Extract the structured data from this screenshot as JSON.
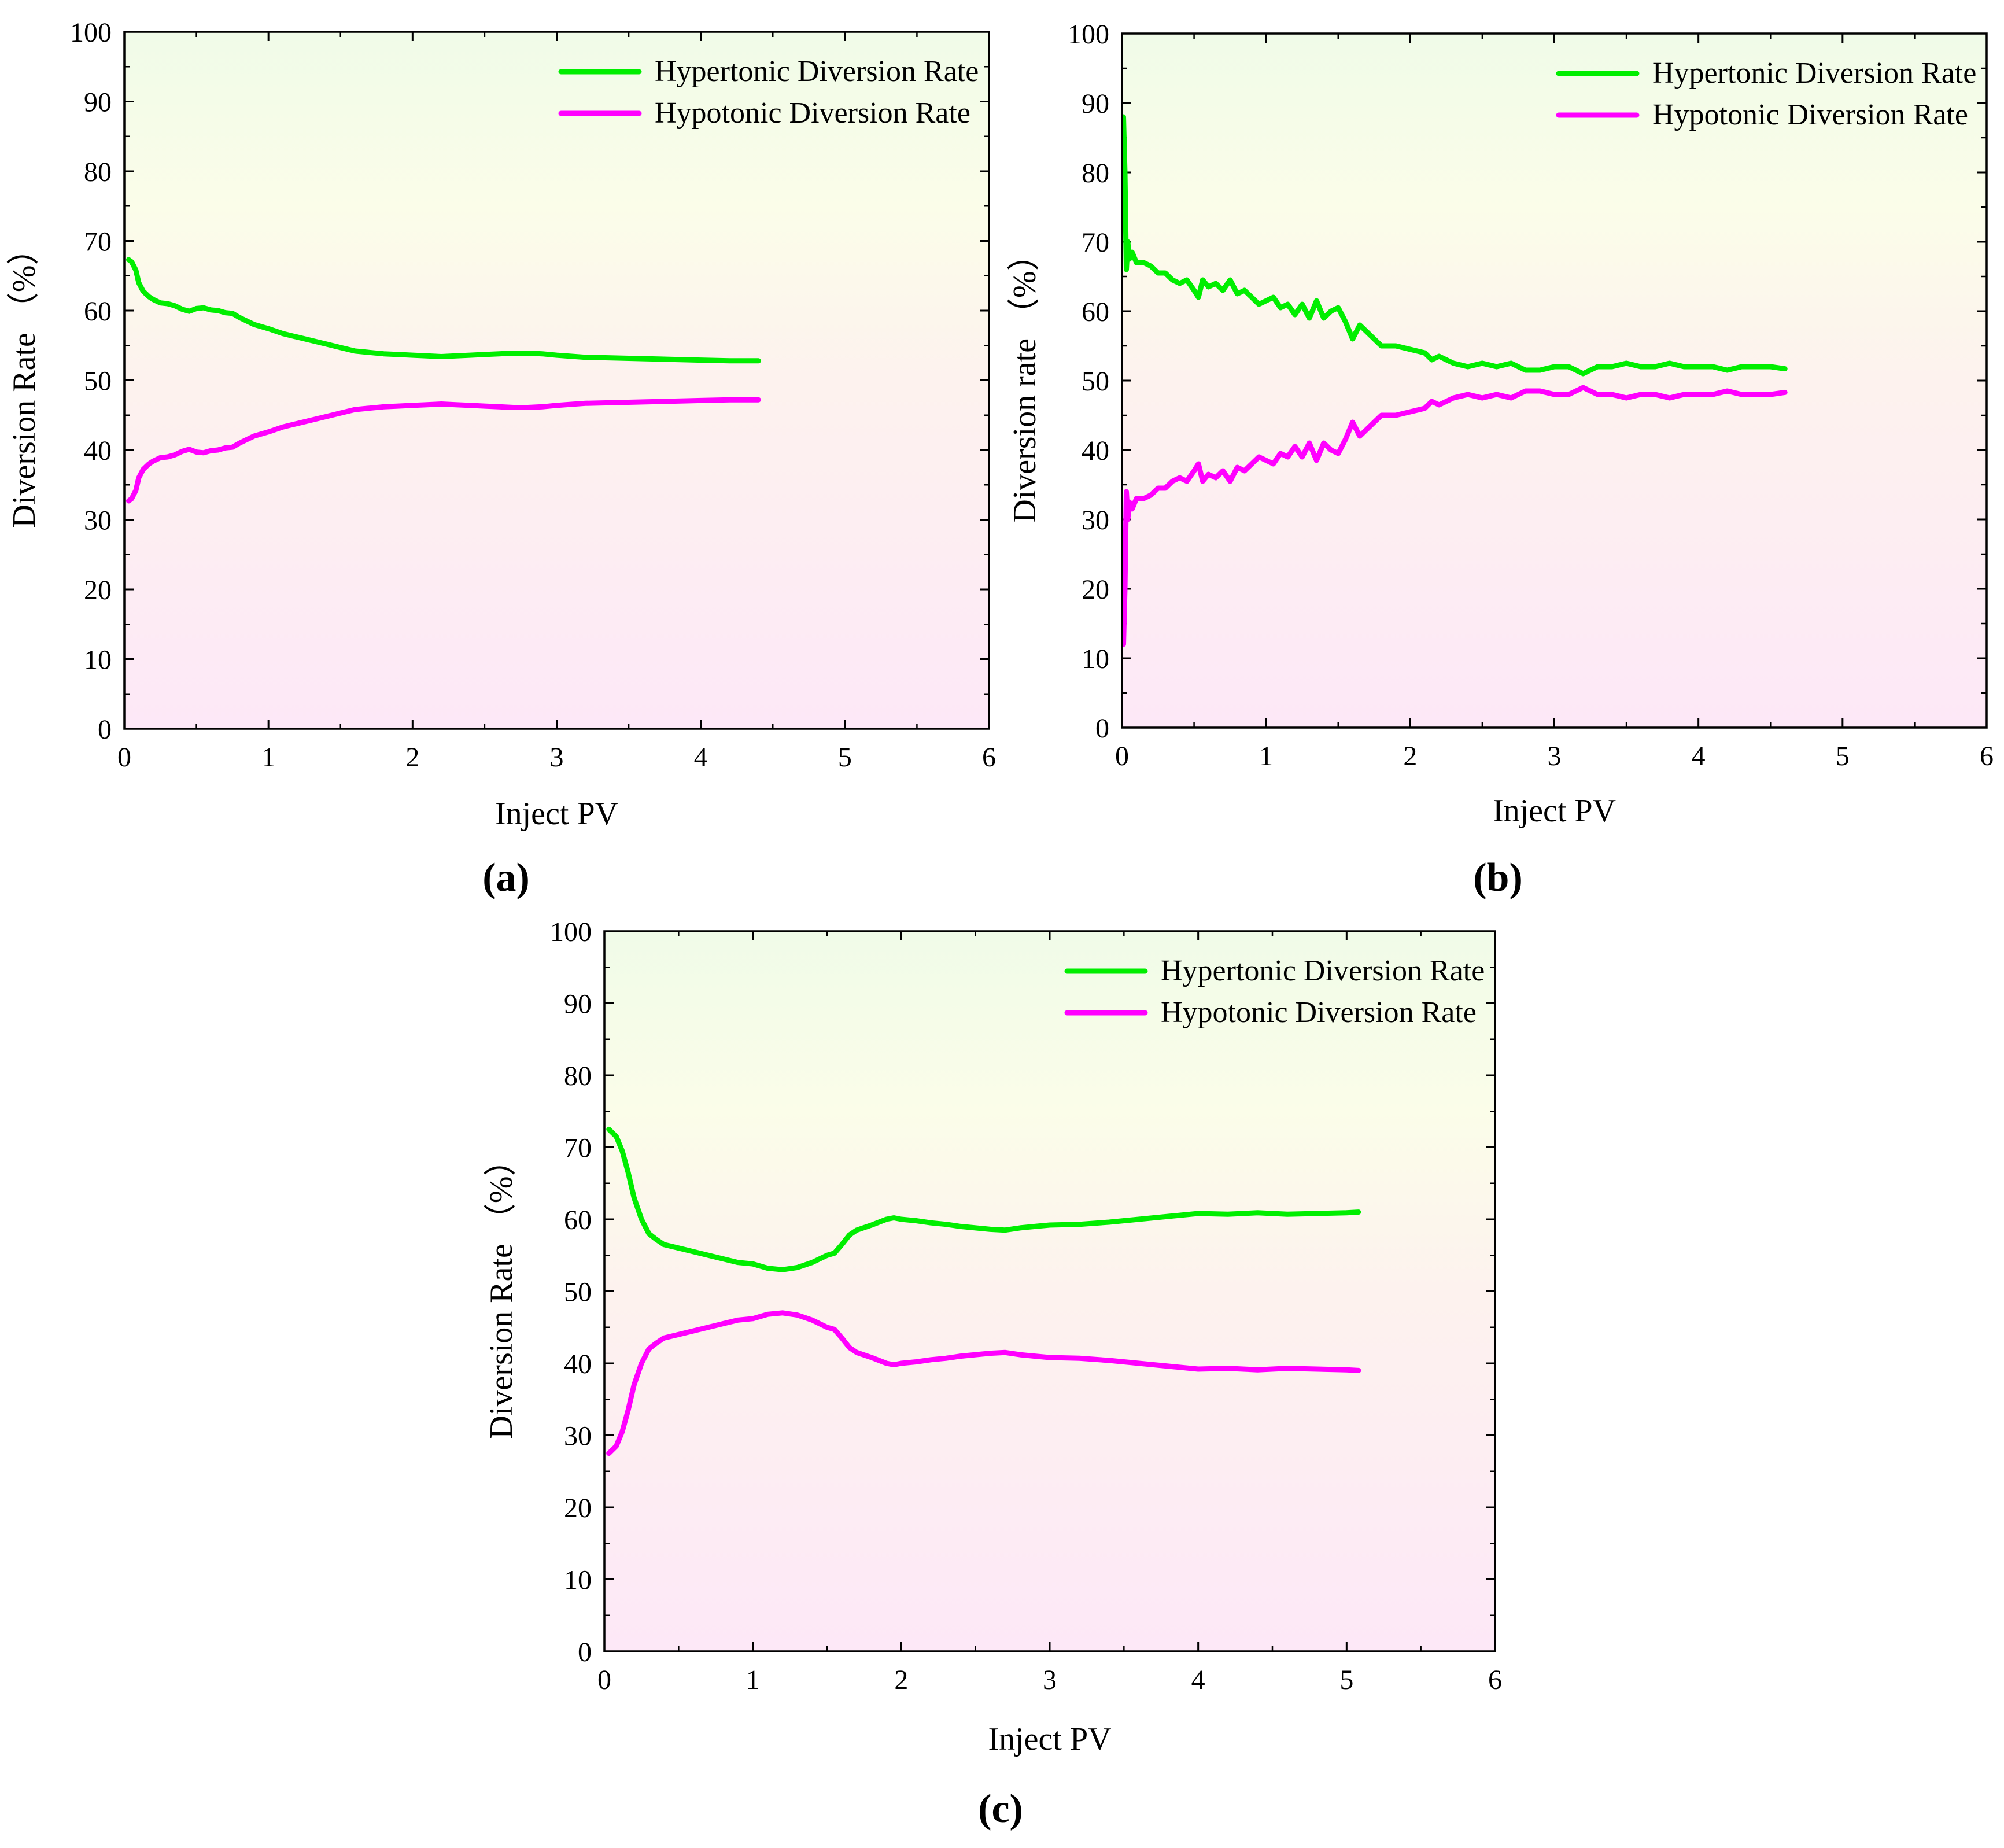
{
  "figure": {
    "panels": [
      "a",
      "b",
      "c"
    ]
  },
  "chart_data": [
    {
      "id": "a",
      "type": "line",
      "panel_label": "(a)",
      "xlabel": "Inject PV",
      "ylabel": "Diversion Rate （%）",
      "xlim": [
        0,
        6
      ],
      "ylim": [
        0,
        100
      ],
      "xticks": [
        0,
        1,
        2,
        3,
        4,
        5,
        6
      ],
      "yticks": [
        0,
        10,
        20,
        30,
        40,
        50,
        60,
        70,
        80,
        90,
        100
      ],
      "legend_position": "top-right",
      "series": [
        {
          "name": "Hypertonic Diversion Rate",
          "color": "#00ee00",
          "x": [
            0.03,
            0.05,
            0.08,
            0.1,
            0.13,
            0.17,
            0.2,
            0.25,
            0.3,
            0.35,
            0.4,
            0.45,
            0.5,
            0.55,
            0.6,
            0.65,
            0.7,
            0.75,
            0.8,
            0.9,
            1.0,
            1.1,
            1.2,
            1.3,
            1.4,
            1.5,
            1.6,
            1.7,
            1.8,
            1.9,
            2.0,
            2.1,
            2.2,
            2.3,
            2.4,
            2.5,
            2.6,
            2.7,
            2.8,
            2.9,
            3.0,
            3.2,
            3.4,
            3.6,
            3.8,
            4.0,
            4.2,
            4.4
          ],
          "values": [
            67.3,
            67.0,
            65.8,
            64.0,
            62.8,
            62.0,
            61.6,
            61.1,
            61.0,
            60.7,
            60.2,
            59.9,
            60.3,
            60.4,
            60.1,
            60.0,
            59.7,
            59.6,
            59.0,
            58.0,
            57.4,
            56.7,
            56.2,
            55.7,
            55.2,
            54.7,
            54.2,
            54.0,
            53.8,
            53.7,
            53.6,
            53.5,
            53.4,
            53.5,
            53.6,
            53.7,
            53.8,
            53.9,
            53.9,
            53.8,
            53.6,
            53.3,
            53.2,
            53.1,
            53.0,
            52.9,
            52.8,
            52.8
          ]
        },
        {
          "name": "Hypotonic Diversion Rate",
          "color": "#ff00ff",
          "x": [
            0.03,
            0.05,
            0.08,
            0.1,
            0.13,
            0.17,
            0.2,
            0.25,
            0.3,
            0.35,
            0.4,
            0.45,
            0.5,
            0.55,
            0.6,
            0.65,
            0.7,
            0.75,
            0.8,
            0.9,
            1.0,
            1.1,
            1.2,
            1.3,
            1.4,
            1.5,
            1.6,
            1.7,
            1.8,
            1.9,
            2.0,
            2.1,
            2.2,
            2.3,
            2.4,
            2.5,
            2.6,
            2.7,
            2.8,
            2.9,
            3.0,
            3.2,
            3.4,
            3.6,
            3.8,
            4.0,
            4.2,
            4.4
          ],
          "values": [
            32.7,
            33.0,
            34.2,
            36.0,
            37.2,
            38.0,
            38.4,
            38.9,
            39.0,
            39.3,
            39.8,
            40.1,
            39.7,
            39.6,
            39.9,
            40.0,
            40.3,
            40.4,
            41.0,
            42.0,
            42.6,
            43.3,
            43.8,
            44.3,
            44.8,
            45.3,
            45.8,
            46.0,
            46.2,
            46.3,
            46.4,
            46.5,
            46.6,
            46.5,
            46.4,
            46.3,
            46.2,
            46.1,
            46.1,
            46.2,
            46.4,
            46.7,
            46.8,
            46.9,
            47.0,
            47.1,
            47.2,
            47.2
          ]
        }
      ]
    },
    {
      "id": "b",
      "type": "line",
      "panel_label": "(b)",
      "xlabel": "Inject  PV",
      "ylabel": "Diversion rate （%）",
      "xlim": [
        0,
        6
      ],
      "ylim": [
        0,
        100
      ],
      "xticks": [
        0,
        1,
        2,
        3,
        4,
        5,
        6
      ],
      "yticks": [
        0,
        10,
        20,
        30,
        40,
        50,
        60,
        70,
        80,
        90,
        100
      ],
      "legend_position": "top-right",
      "series": [
        {
          "name": "Hypertonic Diversion Rate",
          "color": "#00ee00",
          "x": [
            0.01,
            0.02,
            0.03,
            0.04,
            0.05,
            0.07,
            0.1,
            0.15,
            0.2,
            0.25,
            0.3,
            0.35,
            0.4,
            0.45,
            0.5,
            0.53,
            0.56,
            0.6,
            0.65,
            0.7,
            0.75,
            0.8,
            0.85,
            0.9,
            0.95,
            1.0,
            1.05,
            1.1,
            1.15,
            1.2,
            1.25,
            1.3,
            1.35,
            1.4,
            1.45,
            1.5,
            1.55,
            1.6,
            1.65,
            1.7,
            1.75,
            1.8,
            1.9,
            2.0,
            2.1,
            2.15,
            2.2,
            2.3,
            2.4,
            2.5,
            2.6,
            2.7,
            2.8,
            2.9,
            3.0,
            3.1,
            3.2,
            3.3,
            3.4,
            3.5,
            3.6,
            3.7,
            3.8,
            3.9,
            4.0,
            4.1,
            4.2,
            4.3,
            4.4,
            4.5,
            4.6
          ],
          "values": [
            88.0,
            80.0,
            66.0,
            70.0,
            67.5,
            68.5,
            67.0,
            67.0,
            66.5,
            65.5,
            65.5,
            64.5,
            64.0,
            64.5,
            63.0,
            62.0,
            64.5,
            63.5,
            64.0,
            63.0,
            64.5,
            62.5,
            63.0,
            62.0,
            61.0,
            61.5,
            62.0,
            60.5,
            61.0,
            59.5,
            61.0,
            59.0,
            61.5,
            59.0,
            60.0,
            60.5,
            58.5,
            56.0,
            58.0,
            57.0,
            56.0,
            55.0,
            55.0,
            54.5,
            54.0,
            53.0,
            53.5,
            52.5,
            52.0,
            52.5,
            52.0,
            52.5,
            51.5,
            51.5,
            52.0,
            52.0,
            51.0,
            52.0,
            52.0,
            52.5,
            52.0,
            52.0,
            52.5,
            52.0,
            52.0,
            52.0,
            51.5,
            52.0,
            52.0,
            52.0,
            51.7
          ]
        },
        {
          "name": "Hypotonic  Diversion Rate",
          "color": "#ff00ff",
          "x": [
            0.01,
            0.02,
            0.03,
            0.04,
            0.05,
            0.07,
            0.1,
            0.15,
            0.2,
            0.25,
            0.3,
            0.35,
            0.4,
            0.45,
            0.5,
            0.53,
            0.56,
            0.6,
            0.65,
            0.7,
            0.75,
            0.8,
            0.85,
            0.9,
            0.95,
            1.0,
            1.05,
            1.1,
            1.15,
            1.2,
            1.25,
            1.3,
            1.35,
            1.4,
            1.45,
            1.5,
            1.55,
            1.6,
            1.65,
            1.7,
            1.75,
            1.8,
            1.9,
            2.0,
            2.1,
            2.15,
            2.2,
            2.3,
            2.4,
            2.5,
            2.6,
            2.7,
            2.8,
            2.9,
            3.0,
            3.1,
            3.2,
            3.3,
            3.4,
            3.5,
            3.6,
            3.7,
            3.8,
            3.9,
            4.0,
            4.1,
            4.2,
            4.3,
            4.4,
            4.5,
            4.6
          ],
          "values": [
            12.0,
            20.0,
            34.0,
            30.0,
            32.5,
            31.5,
            33.0,
            33.0,
            33.5,
            34.5,
            34.5,
            35.5,
            36.0,
            35.5,
            37.0,
            38.0,
            35.5,
            36.5,
            36.0,
            37.0,
            35.5,
            37.5,
            37.0,
            38.0,
            39.0,
            38.5,
            38.0,
            39.5,
            39.0,
            40.5,
            39.0,
            41.0,
            38.5,
            41.0,
            40.0,
            39.5,
            41.5,
            44.0,
            42.0,
            43.0,
            44.0,
            45.0,
            45.0,
            45.5,
            46.0,
            47.0,
            46.5,
            47.5,
            48.0,
            47.5,
            48.0,
            47.5,
            48.5,
            48.5,
            48.0,
            48.0,
            49.0,
            48.0,
            48.0,
            47.5,
            48.0,
            48.0,
            47.5,
            48.0,
            48.0,
            48.0,
            48.5,
            48.0,
            48.0,
            48.0,
            48.3
          ]
        }
      ]
    },
    {
      "id": "c",
      "type": "line",
      "panel_label": "(c)",
      "xlabel": "Inject PV",
      "ylabel": "Diversion Rate （%）",
      "xlim": [
        0,
        6
      ],
      "ylim": [
        0,
        100
      ],
      "xticks": [
        0,
        1,
        2,
        3,
        4,
        5,
        6
      ],
      "yticks": [
        0,
        10,
        20,
        30,
        40,
        50,
        60,
        70,
        80,
        90,
        100
      ],
      "legend_position": "top-right",
      "series": [
        {
          "name": "Hypertonic Diversion Rate",
          "color": "#00ee00",
          "x": [
            0.03,
            0.08,
            0.12,
            0.16,
            0.2,
            0.25,
            0.3,
            0.35,
            0.4,
            0.5,
            0.6,
            0.7,
            0.8,
            0.9,
            1.0,
            1.1,
            1.2,
            1.3,
            1.4,
            1.5,
            1.55,
            1.6,
            1.65,
            1.7,
            1.8,
            1.9,
            1.95,
            2.0,
            2.1,
            2.2,
            2.3,
            2.4,
            2.5,
            2.6,
            2.7,
            2.8,
            2.9,
            3.0,
            3.2,
            3.4,
            3.6,
            3.8,
            4.0,
            4.2,
            4.4,
            4.6,
            4.8,
            5.0,
            5.08
          ],
          "values": [
            72.5,
            71.5,
            69.5,
            66.5,
            63.0,
            60.0,
            58.0,
            57.2,
            56.5,
            56.0,
            55.5,
            55.0,
            54.5,
            54.0,
            53.8,
            53.2,
            53.0,
            53.3,
            54.0,
            55.0,
            55.3,
            56.5,
            57.8,
            58.5,
            59.2,
            60.0,
            60.2,
            60.0,
            59.8,
            59.5,
            59.3,
            59.0,
            58.8,
            58.6,
            58.5,
            58.8,
            59.0,
            59.2,
            59.3,
            59.6,
            60.0,
            60.4,
            60.8,
            60.7,
            60.9,
            60.7,
            60.8,
            60.9,
            61.0
          ]
        },
        {
          "name": "Hypotonic Diversion Rate",
          "color": "#ff00ff",
          "x": [
            0.03,
            0.08,
            0.12,
            0.16,
            0.2,
            0.25,
            0.3,
            0.35,
            0.4,
            0.5,
            0.6,
            0.7,
            0.8,
            0.9,
            1.0,
            1.1,
            1.2,
            1.3,
            1.4,
            1.5,
            1.55,
            1.6,
            1.65,
            1.7,
            1.8,
            1.9,
            1.95,
            2.0,
            2.1,
            2.2,
            2.3,
            2.4,
            2.5,
            2.6,
            2.7,
            2.8,
            2.9,
            3.0,
            3.2,
            3.4,
            3.6,
            3.8,
            4.0,
            4.2,
            4.4,
            4.6,
            4.8,
            5.0,
            5.08
          ],
          "values": [
            27.5,
            28.5,
            30.5,
            33.5,
            37.0,
            40.0,
            42.0,
            42.8,
            43.5,
            44.0,
            44.5,
            45.0,
            45.5,
            46.0,
            46.2,
            46.8,
            47.0,
            46.7,
            46.0,
            45.0,
            44.7,
            43.5,
            42.2,
            41.5,
            40.8,
            40.0,
            39.8,
            40.0,
            40.2,
            40.5,
            40.7,
            41.0,
            41.2,
            41.4,
            41.5,
            41.2,
            41.0,
            40.8,
            40.7,
            40.4,
            40.0,
            39.6,
            39.2,
            39.3,
            39.1,
            39.3,
            39.2,
            39.1,
            39.0
          ]
        }
      ]
    }
  ]
}
